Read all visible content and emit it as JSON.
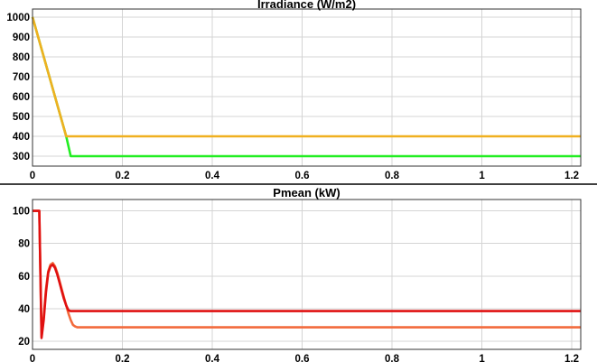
{
  "chart_data": [
    {
      "type": "line",
      "title": "Irradiance (W/m2)",
      "xlim": [
        0,
        1.22
      ],
      "ylim": [
        250,
        1040
      ],
      "xticks": [
        0,
        0.2,
        0.4,
        0.6,
        0.8,
        1,
        1.2
      ],
      "xtick_labels": [
        "0",
        "0.2",
        "0.4",
        "0.6",
        "0.8",
        "1",
        "1.2"
      ],
      "yticks": [
        300,
        400,
        500,
        600,
        700,
        800,
        900,
        1000
      ],
      "ytick_labels": [
        "300",
        "400",
        "500",
        "600",
        "700",
        "800",
        "900",
        "1000"
      ],
      "grid": true,
      "series": [
        {
          "color": "#22ee22",
          "x": [
            0,
            0.075,
            0.085,
            1.22
          ],
          "y": [
            1000,
            400,
            300,
            300
          ]
        },
        {
          "color": "#f0b020",
          "x": [
            0,
            0.075,
            1.22
          ],
          "y": [
            1000,
            400,
            400
          ]
        }
      ]
    },
    {
      "type": "line",
      "title": "Pmean (kW)",
      "xlim": [
        0,
        1.22
      ],
      "ylim": [
        15,
        107
      ],
      "xticks": [
        0,
        0.2,
        0.4,
        0.6,
        0.8,
        1,
        1.2
      ],
      "xtick_labels": [
        "0",
        "0.2",
        "0.4",
        "0.6",
        "0.8",
        "1",
        "1.2"
      ],
      "yticks": [
        20,
        40,
        60,
        80,
        100
      ],
      "ytick_labels": [
        "20",
        "40",
        "60",
        "80",
        "100"
      ],
      "grid": true,
      "series": [
        {
          "color": "#f26a3c",
          "x": [
            0,
            0.015,
            0.02,
            0.025,
            0.03,
            0.035,
            0.04,
            0.045,
            0.05,
            0.055,
            0.06,
            0.065,
            0.07,
            0.075,
            0.08,
            0.085,
            0.09,
            0.095,
            0.1,
            1.22
          ],
          "y": [
            100,
            100,
            23,
            35,
            52,
            63,
            67,
            68,
            66,
            62,
            57,
            52,
            47,
            42,
            37,
            33,
            30,
            29,
            28.5,
            28.5
          ]
        },
        {
          "color": "#e01010",
          "x": [
            0,
            0.015,
            0.02,
            0.025,
            0.03,
            0.035,
            0.04,
            0.045,
            0.05,
            0.055,
            0.06,
            0.065,
            0.07,
            0.075,
            0.08,
            0.085,
            1.22
          ],
          "y": [
            100,
            100,
            22,
            33,
            50,
            62,
            66,
            67,
            65,
            61,
            56,
            51,
            46,
            42,
            39,
            38.5,
            38.5
          ]
        }
      ]
    }
  ]
}
